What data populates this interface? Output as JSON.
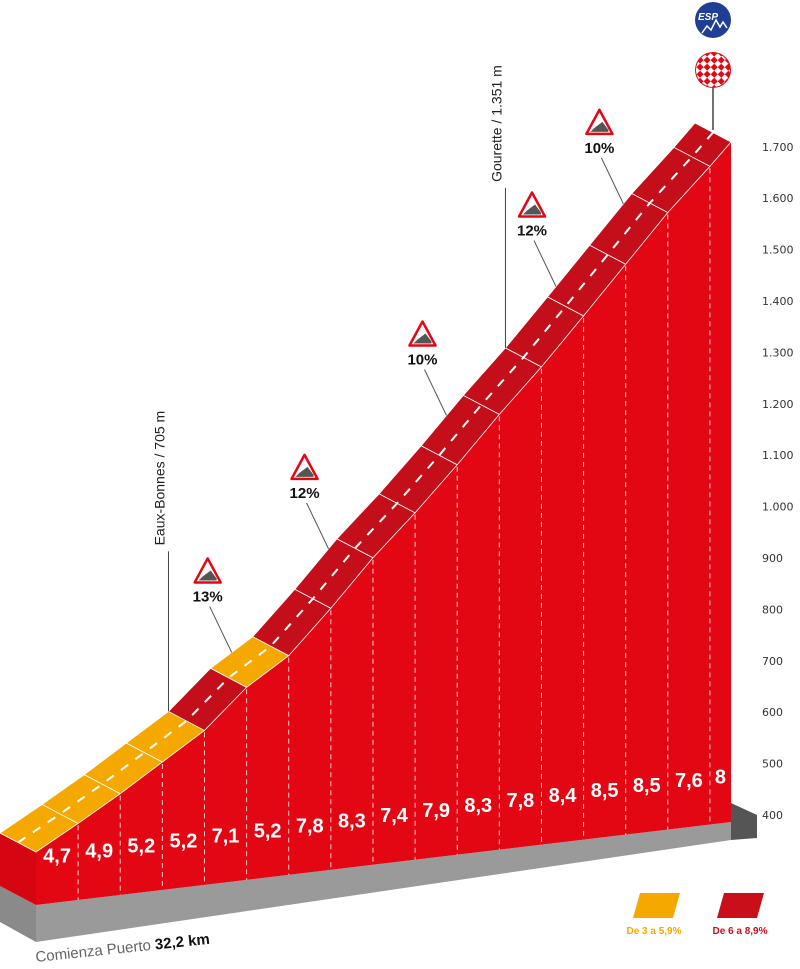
{
  "chart_data": {
    "type": "area",
    "title": "",
    "segment_gradients": [
      4.7,
      4.9,
      5.2,
      5.2,
      7.1,
      5.2,
      7.8,
      8.3,
      7.4,
      7.9,
      8.3,
      7.8,
      8.4,
      8.5,
      8.5,
      7.6,
      8
    ],
    "segment_labels": [
      "4,7",
      "4,9",
      "5,2",
      "5,2",
      "7,1",
      "5,2",
      "7,8",
      "8,3",
      "7,4",
      "7,9",
      "8,3",
      "7,8",
      "8,4",
      "8,5",
      "8,5",
      "7,6",
      "8"
    ],
    "segment_distance_km": [
      1,
      1,
      1,
      1,
      1,
      1,
      1,
      1,
      1,
      1,
      1,
      1,
      1,
      1,
      1,
      1,
      0.5
    ],
    "ylabel": "",
    "ylim": [
      400,
      1700
    ],
    "y_ticks": [
      "400",
      "500",
      "600",
      "700",
      "800",
      "900",
      "1.000",
      "1.100",
      "1.200",
      "1.300",
      "1.400",
      "1.500",
      "1.600",
      "1.700"
    ],
    "y_tick_values": [
      400,
      500,
      600,
      700,
      800,
      900,
      1000,
      1100,
      1200,
      1300,
      1400,
      1500,
      1600,
      1700
    ],
    "landmarks": [
      {
        "label": "Eaux-Bonnes / 705 m",
        "after_segment": 4
      },
      {
        "label": "Gourette / 1.351 m",
        "after_segment": 12
      }
    ],
    "max_gradient_signs": [
      {
        "label": "13%",
        "km": 5.5
      },
      {
        "label": "12%",
        "km": 7.8
      },
      {
        "label": "10%",
        "km": 10.6
      },
      {
        "label": "12%",
        "km": 13.2
      },
      {
        "label": "10%",
        "km": 14.8
      }
    ],
    "summit_badge": "ESP",
    "start_label": "Comienza Puerto",
    "start_km": "32,2 km",
    "legend": [
      {
        "label": "De 3 a 5,9%",
        "color": "#f5a800",
        "range": [
          3,
          5.9
        ]
      },
      {
        "label": "De 6 a 8,9%",
        "color": "#c80f1a",
        "range": [
          6,
          8.9
        ]
      }
    ]
  },
  "colors": {
    "front": "#e30613",
    "band_red": "#c40e1a",
    "band_orange": "#f5a800",
    "base": "#9a9a9a",
    "base_dark": "#555555",
    "badge_blue": "#1f3f94"
  }
}
